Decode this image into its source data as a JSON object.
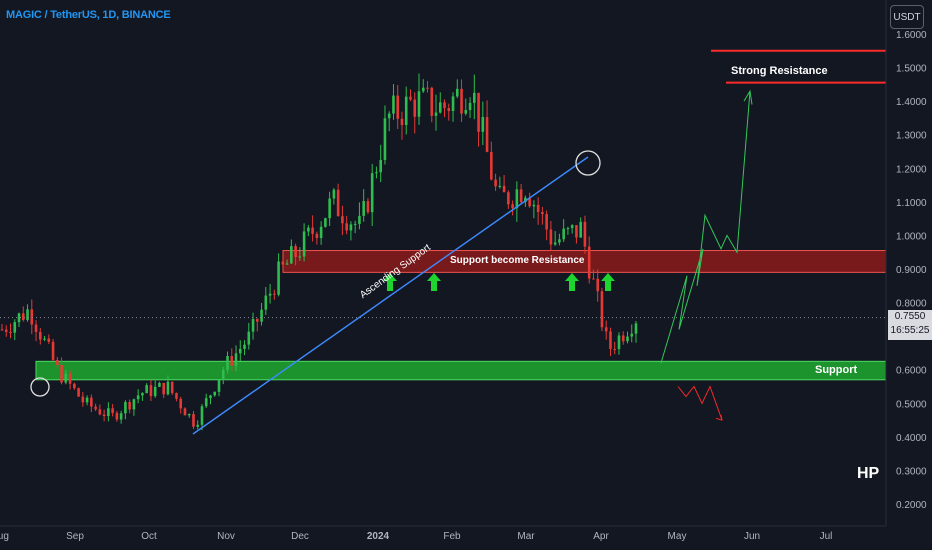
{
  "header": {
    "title": "MAGIC / TetherUS, 1D, BINANCE",
    "currency_button": "USDT"
  },
  "price_tag": {
    "price": "0.7550",
    "countdown": "16:55:25"
  },
  "watermark": "HP",
  "colors": {
    "background": "#131722",
    "up": "#26a69a",
    "down": "#ef5350",
    "title": "#2196f3",
    "support_zone": "#1fa12f",
    "resistance_zone": "#8b1a1a",
    "trendline": "#2962ff"
  },
  "annotations": {
    "strong_resistance": "Strong Resistance",
    "support_become_resistance": "Support become Resistance",
    "ascending_support": "Ascending Support",
    "support": "Support"
  },
  "chart_data": {
    "type": "candlestick",
    "title": "MAGIC / TetherUS, 1D, BINANCE",
    "y_axis": {
      "ticks": [
        "1.6000",
        "1.5000",
        "1.4000",
        "1.3000",
        "1.2000",
        "1.1000",
        "1.0000",
        "0.9000",
        "0.8000",
        "0.7000",
        "0.6000",
        "0.5000",
        "0.4000",
        "0.3000",
        "0.2000"
      ],
      "range": [
        0.15,
        1.6
      ]
    },
    "x_axis": {
      "ticks": [
        "Aug",
        "Sep",
        "Oct",
        "Nov",
        "Dec",
        "2024",
        "Feb",
        "Mar",
        "Apr",
        "May",
        "Jun",
        "Jul"
      ]
    },
    "current_price": 0.755,
    "price_path": [
      {
        "date": "Aug",
        "price": 0.72
      },
      {
        "date": "Aug 20",
        "price": 0.78
      },
      {
        "date": "Aug 25",
        "price": 0.6
      },
      {
        "date": "Sep",
        "price": 0.5
      },
      {
        "date": "Sep 15",
        "price": 0.46
      },
      {
        "date": "Oct",
        "price": 0.53
      },
      {
        "date": "Oct 10",
        "price": 0.55
      },
      {
        "date": "Oct 20",
        "price": 0.44
      },
      {
        "date": "Nov",
        "price": 0.6
      },
      {
        "date": "Nov 20",
        "price": 0.7
      },
      {
        "date": "Dec",
        "price": 0.88
      },
      {
        "date": "Dec 15",
        "price": 0.98
      },
      {
        "date": "2024",
        "price": 1.1
      },
      {
        "date": "Jan 15",
        "price": 1.02
      },
      {
        "date": "Feb",
        "price": 1.35
      },
      {
        "date": "Feb 15",
        "price": 1.4
      },
      {
        "date": "Mar",
        "price": 1.38
      },
      {
        "date": "Mar 10",
        "price": 1.45
      },
      {
        "date": "Mar 20",
        "price": 1.1
      },
      {
        "date": "Mar 30",
        "price": 1.15
      },
      {
        "date": "Apr",
        "price": 0.98
      },
      {
        "date": "Apr 10",
        "price": 1.02
      },
      {
        "date": "Apr 14",
        "price": 0.66
      },
      {
        "date": "Apr 18",
        "price": 0.755
      }
    ],
    "zones": [
      {
        "name": "Support become Resistance",
        "low": 0.89,
        "high": 0.955
      },
      {
        "name": "Support",
        "low": 0.57,
        "high": 0.625
      }
    ],
    "levels": [
      {
        "name": "Strong Resistance",
        "values": [
          1.55,
          1.455
        ]
      }
    ],
    "projections": [
      {
        "direction": "up",
        "points": [
          0.62,
          0.88,
          0.72,
          0.96,
          0.85,
          1.06,
          0.96,
          1.0,
          0.95,
          1.43
        ]
      },
      {
        "direction": "down",
        "points": [
          0.55,
          0.52,
          0.55,
          0.5,
          0.55,
          0.45
        ]
      }
    ]
  }
}
